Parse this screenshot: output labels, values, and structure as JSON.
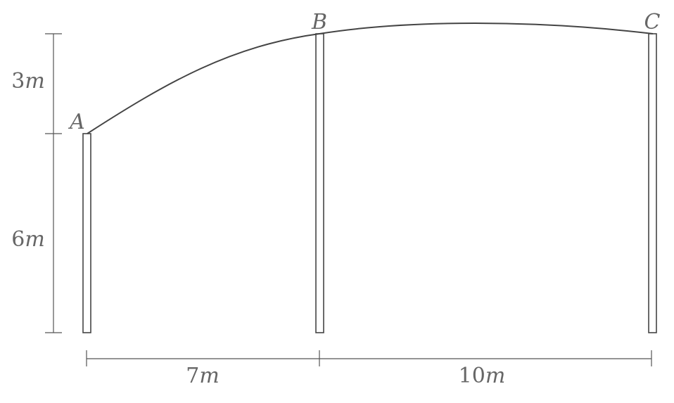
{
  "diagram": {
    "points": {
      "a": "A",
      "b": "B",
      "c": "C"
    },
    "dimensions": {
      "upper_height": {
        "num": "3",
        "unit": "m"
      },
      "lower_height": {
        "num": "6",
        "unit": "m"
      },
      "span_ab": {
        "num": "7",
        "unit": "m"
      },
      "span_bc": {
        "num": "10",
        "unit": "m"
      }
    },
    "colors": {
      "stroke": "#444444",
      "text": "#666666"
    }
  }
}
